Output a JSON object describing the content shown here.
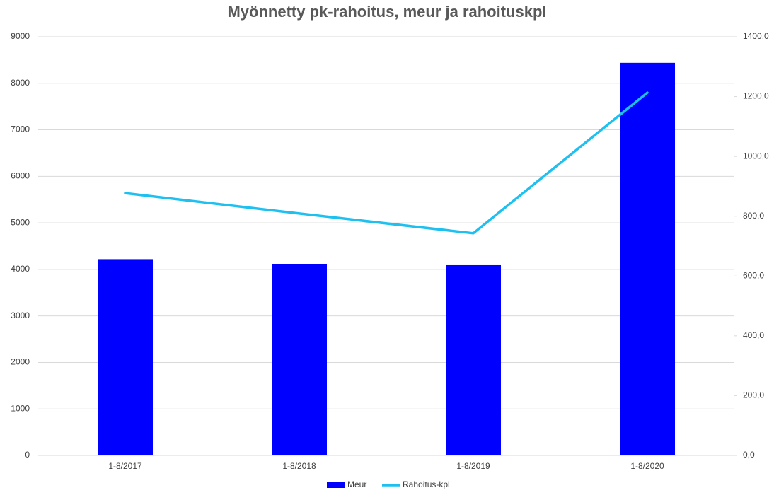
{
  "chart_data": {
    "type": "bar-line",
    "title": "Myönnetty pk-rahoitus, meur ja rahoituskpl",
    "categories": [
      "1-8/2017",
      "1-8/2018",
      "1-8/2019",
      "1-8/2020"
    ],
    "series": [
      {
        "name": "Meur",
        "type": "bar",
        "color": "#0000ff",
        "values": [
          4220,
          4120,
          4090,
          8440
        ]
      },
      {
        "name": "Rahoitus-kpl",
        "type": "line",
        "axis": "y2",
        "color": "#1ec0f0",
        "values": [
          877,
          809,
          743,
          1213
        ]
      }
    ],
    "ylim": [
      0,
      9000
    ],
    "yticks": [
      0,
      1000,
      2000,
      3000,
      4000,
      5000,
      6000,
      7000,
      8000,
      9000
    ],
    "y2lim": [
      0,
      1400
    ],
    "y2ticks": [
      {
        "value": 0,
        "label": "0,0"
      },
      {
        "value": 200,
        "label": "200,0"
      },
      {
        "value": 400,
        "label": "400,0"
      },
      {
        "value": 600,
        "label": "600,0"
      },
      {
        "value": 800,
        "label": "800,0"
      },
      {
        "value": 1000,
        "label": "1000,0"
      },
      {
        "value": 1200,
        "label": "1200,0"
      },
      {
        "value": 1400,
        "label": "1400,0"
      }
    ],
    "grid": true,
    "legend": "bottom"
  }
}
